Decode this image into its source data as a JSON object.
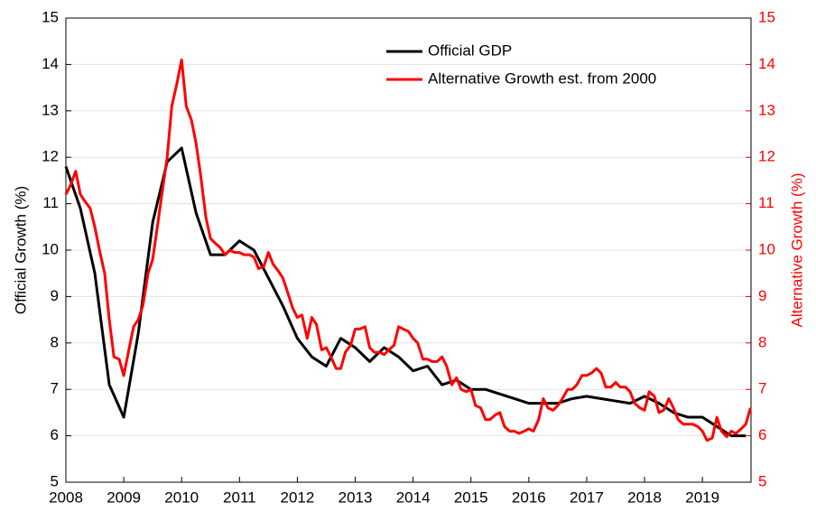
{
  "chart_data": {
    "type": "line",
    "y_label": "Official Growth (%)",
    "y2_label": "Alternative Growth (%)",
    "xlim": [
      2008,
      2019.84
    ],
    "xticks": [
      2008,
      2009,
      2010,
      2011,
      2012,
      2013,
      2014,
      2015,
      2016,
      2017,
      2018,
      2019
    ],
    "ylim": [
      5,
      15
    ],
    "yticks": [
      5,
      6,
      7,
      8,
      9,
      10,
      11,
      12,
      13,
      14,
      15
    ],
    "y2lim": [
      5,
      15
    ],
    "y2ticks": [
      5,
      6,
      7,
      8,
      9,
      10,
      11,
      12,
      13,
      14,
      15
    ],
    "grid": true,
    "legend": "top",
    "series": [
      {
        "name": "Official GDP",
        "color": "#000000",
        "axis": "y",
        "x": [
          2008,
          2008.25,
          2008.5,
          2008.75,
          2009,
          2009.25,
          2009.5,
          2009.75,
          2010,
          2010.25,
          2010.5,
          2010.75,
          2011,
          2011.25,
          2011.5,
          2011.75,
          2012,
          2012.25,
          2012.5,
          2012.75,
          2013,
          2013.25,
          2013.5,
          2013.75,
          2014,
          2014.25,
          2014.5,
          2014.75,
          2015,
          2015.25,
          2015.5,
          2015.75,
          2016,
          2016.25,
          2016.5,
          2016.75,
          2017,
          2017.25,
          2017.5,
          2017.75,
          2018,
          2018.25,
          2018.5,
          2018.75,
          2019,
          2019.25,
          2019.5,
          2019.75
        ],
        "values": [
          11.8,
          10.9,
          9.5,
          7.1,
          6.4,
          8.2,
          10.6,
          11.9,
          12.2,
          10.8,
          9.9,
          9.9,
          10.2,
          10.0,
          9.4,
          8.8,
          8.1,
          7.7,
          7.5,
          8.1,
          7.9,
          7.6,
          7.9,
          7.7,
          7.4,
          7.5,
          7.1,
          7.2,
          7.0,
          7.0,
          6.9,
          6.8,
          6.7,
          6.7,
          6.7,
          6.8,
          6.85,
          6.8,
          6.75,
          6.7,
          6.85,
          6.7,
          6.5,
          6.4,
          6.4,
          6.2,
          6.0,
          6.0
        ]
      },
      {
        "name": "Alternative Growth est. from 2000",
        "color": "#ff0000",
        "axis": "y2",
        "x": [
          2008,
          2008.08,
          2008.17,
          2008.25,
          2008.33,
          2008.42,
          2008.5,
          2008.58,
          2008.67,
          2008.75,
          2008.83,
          2008.92,
          2009,
          2009.08,
          2009.17,
          2009.25,
          2009.33,
          2009.42,
          2009.5,
          2009.58,
          2009.67,
          2009.75,
          2009.83,
          2009.92,
          2010,
          2010.08,
          2010.17,
          2010.25,
          2010.33,
          2010.42,
          2010.5,
          2010.58,
          2010.67,
          2010.75,
          2010.83,
          2010.92,
          2011,
          2011.08,
          2011.17,
          2011.25,
          2011.33,
          2011.42,
          2011.5,
          2011.58,
          2011.67,
          2011.75,
          2011.83,
          2011.92,
          2012,
          2012.08,
          2012.17,
          2012.25,
          2012.33,
          2012.42,
          2012.5,
          2012.58,
          2012.67,
          2012.75,
          2012.83,
          2012.92,
          2013,
          2013.08,
          2013.17,
          2013.25,
          2013.33,
          2013.42,
          2013.5,
          2013.58,
          2013.67,
          2013.75,
          2013.83,
          2013.92,
          2014,
          2014.08,
          2014.17,
          2014.25,
          2014.33,
          2014.42,
          2014.5,
          2014.58,
          2014.67,
          2014.75,
          2014.83,
          2014.92,
          2015,
          2015.08,
          2015.17,
          2015.25,
          2015.33,
          2015.42,
          2015.5,
          2015.58,
          2015.67,
          2015.75,
          2015.83,
          2015.92,
          2016,
          2016.08,
          2016.17,
          2016.25,
          2016.33,
          2016.42,
          2016.5,
          2016.58,
          2016.67,
          2016.75,
          2016.83,
          2016.92,
          2017,
          2017.08,
          2017.17,
          2017.25,
          2017.33,
          2017.42,
          2017.5,
          2017.58,
          2017.67,
          2017.75,
          2017.83,
          2017.92,
          2018,
          2018.08,
          2018.17,
          2018.25,
          2018.33,
          2018.42,
          2018.5,
          2018.58,
          2018.67,
          2018.75,
          2018.83,
          2018.92,
          2019,
          2019.08,
          2019.17,
          2019.25,
          2019.33,
          2019.42,
          2019.5,
          2019.58,
          2019.67,
          2019.75,
          2019.83
        ],
        "values": [
          11.2,
          11.4,
          11.7,
          11.2,
          11.05,
          10.9,
          10.5,
          10.0,
          9.5,
          8.5,
          7.7,
          7.65,
          7.3,
          7.8,
          8.35,
          8.5,
          8.8,
          9.5,
          9.8,
          10.5,
          11.3,
          12.0,
          13.1,
          13.6,
          14.1,
          13.1,
          12.8,
          12.3,
          11.6,
          10.7,
          10.25,
          10.15,
          10.05,
          9.9,
          10.0,
          9.95,
          9.95,
          9.9,
          9.9,
          9.85,
          9.6,
          9.65,
          9.95,
          9.7,
          9.55,
          9.4,
          9.1,
          8.75,
          8.55,
          8.6,
          8.1,
          8.55,
          8.4,
          7.85,
          7.9,
          7.7,
          7.45,
          7.45,
          7.8,
          7.95,
          8.3,
          8.3,
          8.35,
          7.9,
          7.8,
          7.8,
          7.75,
          7.85,
          7.95,
          8.35,
          8.3,
          8.25,
          8.1,
          8.0,
          7.65,
          7.65,
          7.6,
          7.6,
          7.7,
          7.5,
          7.1,
          7.25,
          7.0,
          6.95,
          7.0,
          6.65,
          6.6,
          6.35,
          6.35,
          6.45,
          6.5,
          6.2,
          6.1,
          6.1,
          6.05,
          6.1,
          6.15,
          6.1,
          6.35,
          6.8,
          6.6,
          6.55,
          6.65,
          6.8,
          7.0,
          7.0,
          7.1,
          7.3,
          7.3,
          7.35,
          7.45,
          7.35,
          7.05,
          7.05,
          7.15,
          7.05,
          7.05,
          6.95,
          6.7,
          6.6,
          6.55,
          6.95,
          6.85,
          6.5,
          6.55,
          6.8,
          6.6,
          6.35,
          6.25,
          6.25,
          6.25,
          6.2,
          6.1,
          5.9,
          5.95,
          6.4,
          6.1,
          5.98,
          6.1,
          6.05,
          6.15,
          6.25,
          6.6
        ]
      }
    ]
  }
}
